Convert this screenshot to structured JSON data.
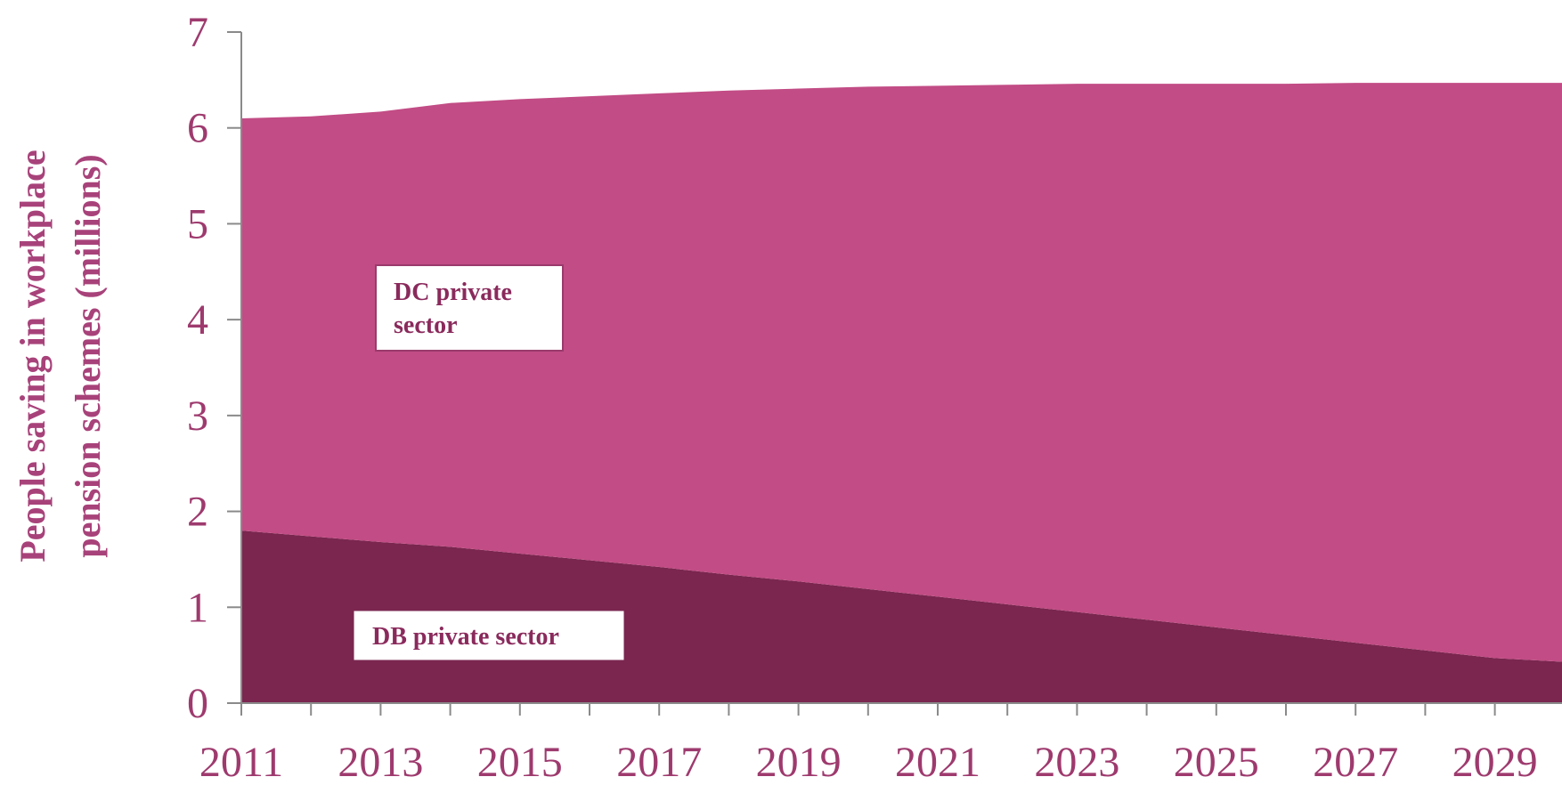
{
  "chart_data": {
    "type": "area",
    "stacked": true,
    "title": "",
    "xlabel": "",
    "ylabel": [
      "People saving in workplace",
      "pension schemes (millions)"
    ],
    "x": [
      2011,
      2012,
      2013,
      2014,
      2015,
      2016,
      2017,
      2018,
      2019,
      2020,
      2021,
      2022,
      2023,
      2024,
      2025,
      2026,
      2027,
      2028,
      2029,
      2030
    ],
    "x_tick_labels": [
      "2011",
      "2013",
      "2015",
      "2017",
      "2019",
      "2021",
      "2023",
      "2025",
      "2027",
      "2029"
    ],
    "y_ticks": [
      0,
      1,
      2,
      3,
      4,
      5,
      6,
      7
    ],
    "ylim": [
      0,
      7
    ],
    "xlim": [
      2011,
      2030
    ],
    "series": [
      {
        "name": "DB private sector",
        "color": "#7a264f",
        "values": [
          1.8,
          1.74,
          1.68,
          1.63,
          1.56,
          1.49,
          1.42,
          1.34,
          1.27,
          1.19,
          1.11,
          1.03,
          0.95,
          0.87,
          0.79,
          0.71,
          0.63,
          0.55,
          0.47,
          0.43
        ]
      },
      {
        "name": "DC private sector",
        "color": "#c24c85",
        "values": [
          4.3,
          4.38,
          4.49,
          4.63,
          4.74,
          4.84,
          4.94,
          5.05,
          5.14,
          5.24,
          5.33,
          5.42,
          5.51,
          5.59,
          5.67,
          5.75,
          5.84,
          5.92,
          6.0,
          6.04
        ]
      }
    ],
    "annotations": {
      "dc": [
        "DC private",
        "sector"
      ],
      "db": "DB private sector"
    },
    "grid": false,
    "legend": "none"
  }
}
